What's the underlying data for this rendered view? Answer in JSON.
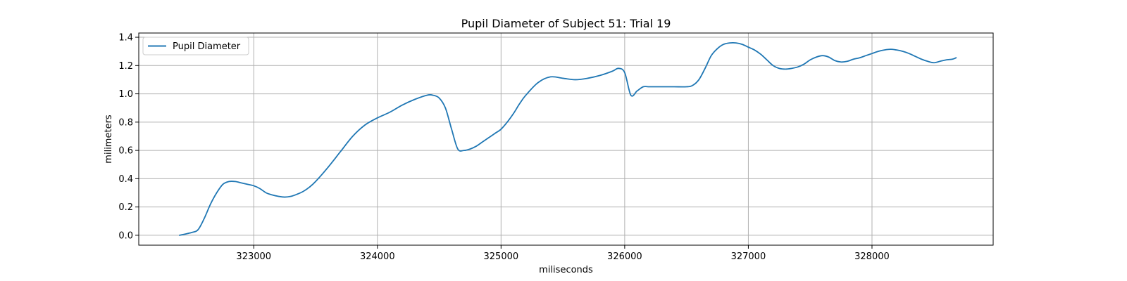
{
  "chart_data": {
    "type": "line",
    "title": "Pupil Diameter of Subject 51: Trial 19",
    "xlabel": "miliseconds",
    "ylabel": "milimeters",
    "xlim": [
      322070,
      328980
    ],
    "ylim": [
      -0.07,
      1.43
    ],
    "xticks": [
      323000,
      324000,
      325000,
      326000,
      327000,
      328000
    ],
    "yticks": [
      0.0,
      0.2,
      0.4,
      0.6,
      0.8,
      1.0,
      1.2,
      1.4
    ],
    "ytick_labels": [
      "0.0",
      "0.2",
      "0.4",
      "0.6",
      "0.8",
      "1.0",
      "1.2",
      "1.4"
    ],
    "grid": true,
    "legend_position": "top-left",
    "series": [
      {
        "name": "Pupil Diameter",
        "color": "#1f77b4",
        "x": [
          322400,
          322500,
          322550,
          322600,
          322650,
          322700,
          322750,
          322800,
          322850,
          322900,
          322950,
          323000,
          323050,
          323100,
          323150,
          323200,
          323250,
          323300,
          323350,
          323400,
          323450,
          323500,
          323600,
          323700,
          323800,
          323900,
          324000,
          324100,
          324200,
          324300,
          324400,
          324450,
          324500,
          324550,
          324600,
          324650,
          324700,
          324750,
          324800,
          324850,
          324900,
          324950,
          325000,
          325050,
          325100,
          325150,
          325200,
          325300,
          325400,
          325500,
          325600,
          325700,
          325800,
          325900,
          325950,
          326000,
          326050,
          326100,
          326150,
          326200,
          326300,
          326400,
          326500,
          326550,
          326600,
          326650,
          326700,
          326750,
          326800,
          326850,
          326900,
          326950,
          327000,
          327050,
          327100,
          327150,
          327200,
          327250,
          327300,
          327350,
          327400,
          327450,
          327500,
          327550,
          327600,
          327650,
          327700,
          327750,
          327800,
          327850,
          327900,
          327950,
          328000,
          328050,
          328100,
          328150,
          328200,
          328250,
          328300,
          328350,
          328400,
          328450,
          328500,
          328550,
          328600,
          328650,
          328680
        ],
        "y": [
          0.0,
          0.02,
          0.04,
          0.12,
          0.22,
          0.3,
          0.36,
          0.38,
          0.38,
          0.37,
          0.36,
          0.35,
          0.33,
          0.3,
          0.285,
          0.275,
          0.27,
          0.275,
          0.29,
          0.31,
          0.34,
          0.38,
          0.48,
          0.59,
          0.7,
          0.78,
          0.83,
          0.87,
          0.92,
          0.96,
          0.99,
          0.99,
          0.97,
          0.9,
          0.75,
          0.61,
          0.6,
          0.61,
          0.63,
          0.66,
          0.69,
          0.72,
          0.75,
          0.8,
          0.86,
          0.93,
          0.99,
          1.08,
          1.12,
          1.11,
          1.1,
          1.11,
          1.13,
          1.16,
          1.18,
          1.15,
          0.99,
          1.02,
          1.05,
          1.05,
          1.05,
          1.05,
          1.05,
          1.06,
          1.1,
          1.18,
          1.27,
          1.32,
          1.35,
          1.36,
          1.36,
          1.35,
          1.33,
          1.31,
          1.28,
          1.24,
          1.2,
          1.18,
          1.175,
          1.18,
          1.19,
          1.21,
          1.24,
          1.26,
          1.27,
          1.26,
          1.235,
          1.225,
          1.23,
          1.245,
          1.255,
          1.27,
          1.285,
          1.3,
          1.31,
          1.315,
          1.31,
          1.3,
          1.285,
          1.265,
          1.245,
          1.23,
          1.22,
          1.23,
          1.24,
          1.245,
          1.255
        ]
      }
    ]
  }
}
